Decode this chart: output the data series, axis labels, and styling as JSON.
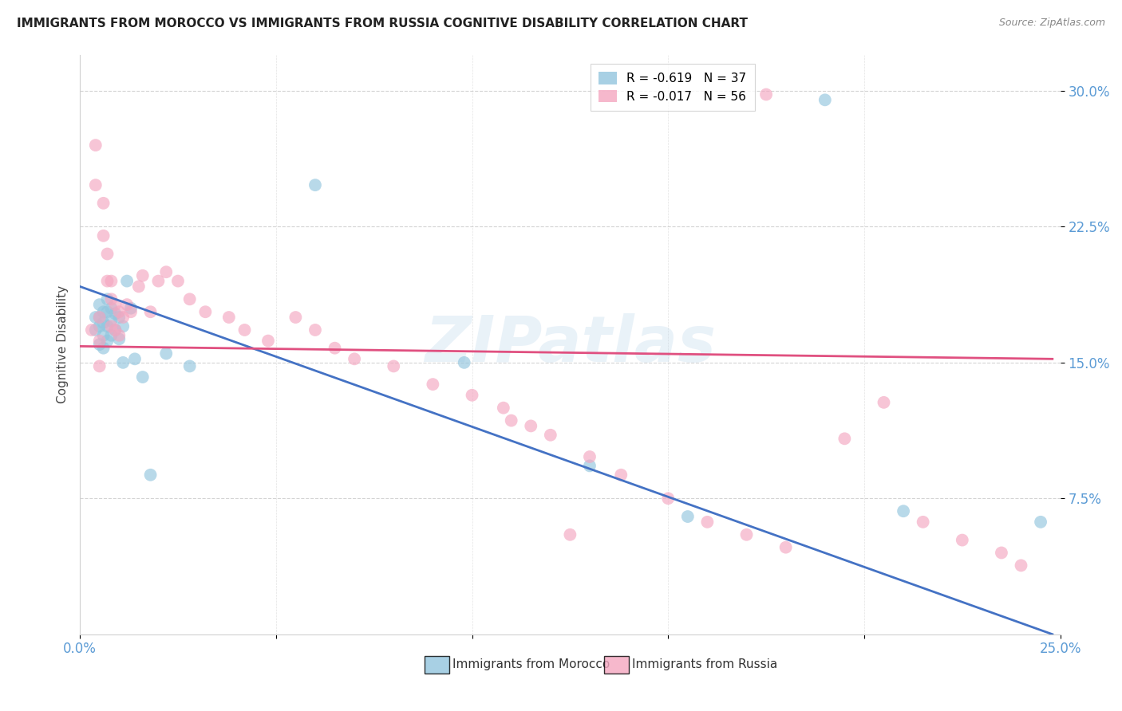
{
  "title": "IMMIGRANTS FROM MOROCCO VS IMMIGRANTS FROM RUSSIA COGNITIVE DISABILITY CORRELATION CHART",
  "source": "Source: ZipAtlas.com",
  "ylabel": "Cognitive Disability",
  "ytick_labels": [
    "30.0%",
    "22.5%",
    "15.0%",
    "7.5%"
  ],
  "ytick_values": [
    0.3,
    0.225,
    0.15,
    0.075
  ],
  "xmin": 0.0,
  "xmax": 0.25,
  "ymin": 0.0,
  "ymax": 0.32,
  "legend1_label": "R = -0.619   N = 37",
  "legend2_label": "R = -0.017   N = 56",
  "legend1_color": "#92c5de",
  "legend2_color": "#f4a6c0",
  "trendline1_color": "#4472c4",
  "trendline2_color": "#e05080",
  "watermark": "ZIPatlas",
  "morocco_x": [
    0.004,
    0.004,
    0.005,
    0.005,
    0.005,
    0.005,
    0.006,
    0.006,
    0.006,
    0.006,
    0.007,
    0.007,
    0.007,
    0.007,
    0.008,
    0.008,
    0.008,
    0.009,
    0.009,
    0.01,
    0.01,
    0.011,
    0.011,
    0.012,
    0.013,
    0.014,
    0.016,
    0.018,
    0.022,
    0.028,
    0.06,
    0.098,
    0.13,
    0.155,
    0.19,
    0.21,
    0.245
  ],
  "morocco_y": [
    0.175,
    0.168,
    0.182,
    0.175,
    0.17,
    0.16,
    0.178,
    0.172,
    0.165,
    0.158,
    0.185,
    0.178,
    0.17,
    0.162,
    0.18,
    0.173,
    0.165,
    0.177,
    0.168,
    0.175,
    0.163,
    0.17,
    0.15,
    0.195,
    0.18,
    0.152,
    0.142,
    0.088,
    0.155,
    0.148,
    0.248,
    0.15,
    0.093,
    0.065,
    0.295,
    0.068,
    0.062
  ],
  "russia_x": [
    0.003,
    0.004,
    0.004,
    0.005,
    0.005,
    0.005,
    0.006,
    0.006,
    0.007,
    0.007,
    0.008,
    0.008,
    0.008,
    0.009,
    0.009,
    0.01,
    0.01,
    0.011,
    0.012,
    0.013,
    0.015,
    0.016,
    0.018,
    0.02,
    0.022,
    0.025,
    0.028,
    0.032,
    0.038,
    0.042,
    0.048,
    0.055,
    0.06,
    0.065,
    0.07,
    0.08,
    0.09,
    0.1,
    0.11,
    0.12,
    0.13,
    0.138,
    0.15,
    0.16,
    0.17,
    0.18,
    0.195,
    0.205,
    0.215,
    0.225,
    0.235,
    0.24,
    0.108,
    0.115,
    0.125,
    0.175
  ],
  "russia_y": [
    0.168,
    0.27,
    0.248,
    0.175,
    0.162,
    0.148,
    0.238,
    0.22,
    0.21,
    0.195,
    0.195,
    0.185,
    0.17,
    0.182,
    0.168,
    0.178,
    0.165,
    0.175,
    0.182,
    0.178,
    0.192,
    0.198,
    0.178,
    0.195,
    0.2,
    0.195,
    0.185,
    0.178,
    0.175,
    0.168,
    0.162,
    0.175,
    0.168,
    0.158,
    0.152,
    0.148,
    0.138,
    0.132,
    0.118,
    0.11,
    0.098,
    0.088,
    0.075,
    0.062,
    0.055,
    0.048,
    0.108,
    0.128,
    0.062,
    0.052,
    0.045,
    0.038,
    0.125,
    0.115,
    0.055,
    0.298
  ],
  "trendline1_x": [
    0.0,
    0.248
  ],
  "trendline1_y": [
    0.192,
    0.0
  ],
  "trendline2_x": [
    0.0,
    0.248
  ],
  "trendline2_y": [
    0.159,
    0.152
  ]
}
